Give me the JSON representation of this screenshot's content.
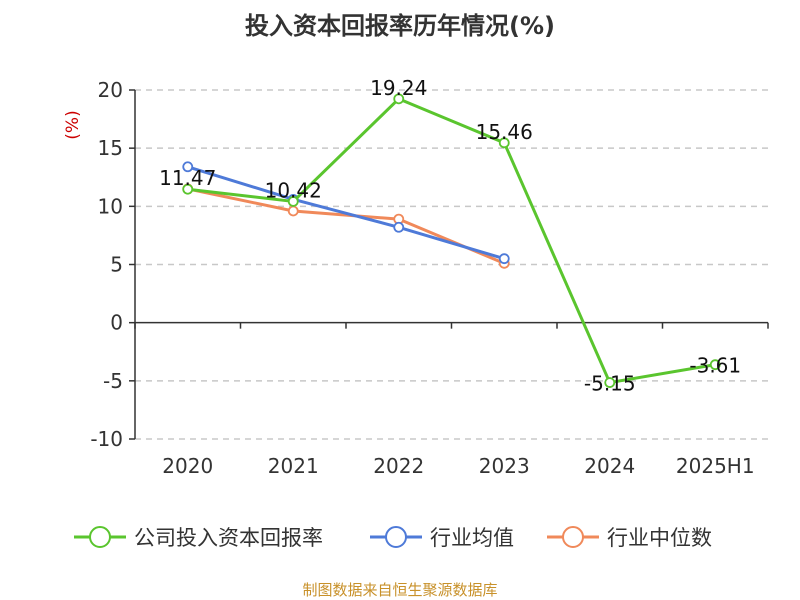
{
  "chart_data": {
    "type": "line",
    "title": "投入资本回报率历年情况(%)",
    "ylabel": "(%)",
    "xlabel": "",
    "categories": [
      "2020",
      "2021",
      "2022",
      "2023",
      "2024",
      "2025H1"
    ],
    "ylim": [
      -10,
      20
    ],
    "yticks": [
      20,
      15,
      10,
      5,
      0,
      -5,
      -10
    ],
    "grid": "horizontal-dashed",
    "legend_position": "bottom",
    "series": [
      {
        "name": "公司投入资本回报率",
        "color": "#5ac52e",
        "values": [
          11.47,
          10.42,
          19.24,
          15.46,
          -5.15,
          -3.61
        ],
        "labels": [
          "11.47",
          "10.42",
          "19.24",
          "15.46",
          "-5.15",
          "-3.61"
        ]
      },
      {
        "name": "行业均值",
        "color": "#4e7ad8",
        "values": [
          13.4,
          10.6,
          8.2,
          5.5,
          null,
          null
        ]
      },
      {
        "name": "行业中位数",
        "color": "#f0895a",
        "values": [
          11.5,
          9.6,
          8.9,
          5.1,
          null,
          null
        ]
      }
    ],
    "source": "制图数据来自恒生聚源数据库"
  }
}
